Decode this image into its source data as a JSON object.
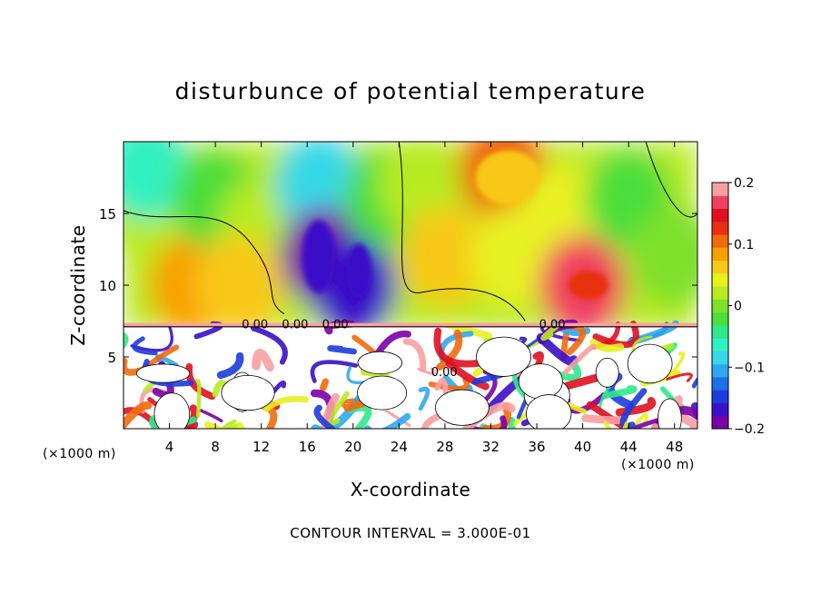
{
  "chart_data": {
    "type": "heatmap",
    "title": "disturbunce of potential temperature",
    "xlabel": "X-coordinate",
    "ylabel": "Z-coordinate",
    "x_unit": "(×1000 m)",
    "y_unit": "(×1000 m)",
    "footer": "CONTOUR INTERVAL = 3.000E-01",
    "xlim": [
      0,
      50
    ],
    "ylim": [
      0,
      20
    ],
    "x_ticks": [
      4,
      8,
      12,
      16,
      20,
      24,
      28,
      32,
      36,
      40,
      44,
      48
    ],
    "y_ticks": [
      5,
      10,
      15
    ],
    "colorbar": {
      "range": [
        -0.2,
        0.2
      ],
      "ticks": [
        0.2,
        0.1,
        0,
        -0.1,
        -0.2
      ],
      "tick_labels": [
        "0.2",
        "0.1",
        "0",
        "−0.1",
        "−0.2"
      ],
      "colors": [
        "#7a00a8",
        "#3a10c8",
        "#1e3cdc",
        "#1f6fe8",
        "#2ea8f0",
        "#36d8e6",
        "#33f0c0",
        "#30e88a",
        "#4cde3a",
        "#7ee02a",
        "#b8ea20",
        "#e8f020",
        "#f8c818",
        "#f8a000",
        "#f06a10",
        "#e83010",
        "#e01020",
        "#f04060",
        "#f8a0a0"
      ]
    },
    "contour_labels": [
      "0.00",
      "0.00",
      "0.00",
      "0.00",
      "0.00"
    ],
    "upper_field": [
      {
        "x": 2,
        "z": 15,
        "v": 0.02
      },
      {
        "x": 2,
        "z": 18,
        "v": -0.06
      },
      {
        "x": 6,
        "z": 10,
        "v": 0.09
      },
      {
        "x": 8,
        "z": 16,
        "v": -0.02
      },
      {
        "x": 12,
        "z": 14,
        "v": 0.03
      },
      {
        "x": 10,
        "z": 10,
        "v": 0.06
      },
      {
        "x": 17,
        "z": 17,
        "v": -0.09
      },
      {
        "x": 17.5,
        "z": 12,
        "v": -0.2
      },
      {
        "x": 20,
        "z": 10,
        "v": -0.16
      },
      {
        "x": 23,
        "z": 16,
        "v": -0.03
      },
      {
        "x": 26,
        "z": 17,
        "v": 0.03
      },
      {
        "x": 28,
        "z": 12,
        "v": 0.06
      },
      {
        "x": 33,
        "z": 18,
        "v": 0.11
      },
      {
        "x": 34,
        "z": 12,
        "v": 0.05
      },
      {
        "x": 38,
        "z": 15,
        "v": 0.05
      },
      {
        "x": 40,
        "z": 10,
        "v": 0.16
      },
      {
        "x": 44,
        "z": 16,
        "v": -0.02
      },
      {
        "x": 48,
        "z": 12,
        "v": 0.01
      }
    ]
  }
}
